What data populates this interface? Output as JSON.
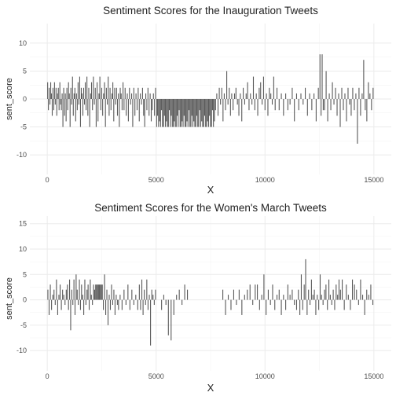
{
  "chart_data": [
    {
      "type": "bar",
      "title": "Sentiment Scores for the Inauguration Tweets",
      "xlabel": "X",
      "ylabel": "sent_score",
      "xlim": [
        -800,
        15800
      ],
      "ylim": [
        -13.5,
        13.5
      ],
      "x_ticks": [
        0,
        5000,
        10000,
        15000
      ],
      "y_ticks": [
        -10,
        -5,
        0,
        5,
        10
      ],
      "grid": true,
      "bar_color": "#595959",
      "segments": [
        {
          "x0": 0,
          "x1": 700,
          "values": [
            3,
            -2,
            2,
            -1,
            3,
            1,
            -3,
            2,
            -2,
            3,
            -1,
            2,
            -3,
            1,
            2,
            -2,
            3,
            -1,
            -2,
            1
          ]
        },
        {
          "x0": 700,
          "x1": 1800,
          "values": [
            -5,
            2,
            -3,
            1,
            -4,
            2,
            -2,
            3,
            1,
            -5,
            2,
            -1,
            4,
            -3,
            1,
            2,
            -4,
            1,
            -2,
            3,
            -1,
            4,
            -5,
            2,
            1,
            -3,
            2,
            -1,
            3,
            -2
          ]
        },
        {
          "x0": 1800,
          "x1": 3500,
          "values": [
            4,
            -3,
            2,
            -5,
            1,
            3,
            -2,
            4,
            -1,
            2,
            -5,
            3,
            -4,
            1,
            4,
            -2,
            2,
            -3,
            1,
            3,
            -5,
            2,
            -1,
            4,
            -3,
            2,
            -2,
            1,
            3,
            -4,
            2,
            -1,
            2,
            -3,
            1,
            -5,
            2,
            1,
            -2,
            3
          ]
        },
        {
          "x0": 3500,
          "x1": 5000,
          "values": [
            -2,
            2,
            -3,
            1,
            -4,
            2,
            -1,
            1,
            -5,
            2,
            -3,
            1,
            -2,
            2,
            -4,
            1,
            -1,
            2,
            -3,
            -5,
            1,
            -2,
            2,
            -3,
            1,
            -4,
            -2,
            1,
            -3,
            2
          ]
        },
        {
          "x0": 5000,
          "x1": 7700,
          "values": [
            -5,
            -3,
            -5,
            -4,
            -5,
            -2,
            -5,
            -5,
            -3,
            -5,
            -4,
            -5,
            -5,
            -2,
            -5,
            -3,
            -5,
            -5,
            -4,
            -5,
            -5,
            -3,
            -5,
            -2,
            -5,
            -5,
            -4,
            -5,
            -3,
            -5,
            -5,
            -4,
            -5,
            -2,
            -5,
            -5,
            -3,
            -5,
            -4,
            -5,
            -5,
            -3,
            -5,
            -5,
            -2,
            -5,
            -4,
            -5,
            -5,
            -3,
            -5,
            -5,
            -4,
            -5,
            -3,
            -5,
            -5,
            -2,
            -5,
            -4
          ]
        },
        {
          "x0": 7700,
          "x1": 8500,
          "values": [
            -2,
            1,
            -3,
            2,
            -1,
            2,
            -4,
            1,
            -2,
            5,
            -1,
            2,
            -3,
            1
          ]
        },
        {
          "x0": 8500,
          "x1": 10500,
          "values": [
            -2,
            1,
            2,
            -1,
            -3,
            1,
            -4,
            2,
            -1,
            1,
            3,
            -2,
            1,
            -1,
            4,
            -2,
            1,
            -3,
            2,
            3,
            -1,
            4,
            -2,
            1,
            -3,
            2,
            1,
            -1,
            4,
            -2
          ]
        },
        {
          "x0": 10500,
          "x1": 12500,
          "values": [
            2,
            -2,
            1,
            -3,
            1,
            -2,
            -1,
            2,
            -4,
            1,
            -2,
            1,
            -1,
            2,
            -3,
            1,
            -2,
            1,
            -4,
            2
          ]
        },
        {
          "x0": 12500,
          "x1": 12700,
          "values": [
            8,
            -3,
            8,
            -2
          ]
        },
        {
          "x0": 12700,
          "x1": 15000,
          "values": [
            -2,
            5,
            -4,
            1,
            -2,
            3,
            -1,
            2,
            -3,
            1,
            -5,
            2,
            -2,
            1,
            -4,
            2,
            -1,
            -3,
            2,
            -2,
            1,
            -8,
            2,
            -3,
            1,
            7,
            -2,
            -4,
            3,
            1,
            -2,
            2
          ]
        }
      ]
    },
    {
      "type": "bar",
      "title": "Sentiment Scores for the Women's March Tweets",
      "xlabel": "X",
      "ylabel": "sent_score",
      "xlim": [
        -800,
        15800
      ],
      "ylim": [
        -14,
        16.5
      ],
      "x_ticks": [
        0,
        5000,
        10000,
        15000
      ],
      "y_ticks": [
        -10,
        -5,
        0,
        5,
        10,
        15
      ],
      "grid": true,
      "bar_color": "#595959",
      "segments": [
        {
          "x0": 0,
          "x1": 900,
          "values": [
            2,
            -3,
            3,
            -2,
            1,
            2,
            -1,
            4,
            -3,
            1,
            3,
            -2,
            2,
            1,
            -1,
            2
          ]
        },
        {
          "x0": 900,
          "x1": 2200,
          "values": [
            3,
            -2,
            4,
            -6,
            2,
            -1,
            4,
            -3,
            5,
            2,
            -1,
            4,
            -2,
            3,
            1,
            -3,
            4,
            -1,
            2,
            3,
            -2,
            4,
            1,
            -1,
            3,
            2
          ]
        },
        {
          "x0": 2200,
          "x1": 2550,
          "values": [
            3,
            3,
            3,
            3,
            3,
            3,
            3,
            3
          ]
        },
        {
          "x0": 2550,
          "x1": 3300,
          "values": [
            -2,
            5,
            -3,
            2,
            -5,
            1,
            -2,
            3,
            -1,
            2,
            -3,
            1,
            -1,
            -2
          ]
        },
        {
          "x0": 3300,
          "x1": 4200,
          "values": [
            1,
            -2,
            2,
            -1,
            3,
            -2,
            2,
            -1,
            1,
            -2
          ]
        },
        {
          "x0": 4200,
          "x1": 5000,
          "values": [
            3,
            -2,
            4,
            -3,
            2,
            -1,
            4,
            -2,
            1,
            -9,
            2,
            1,
            -1,
            2
          ]
        },
        {
          "x0": 5200,
          "x1": 5500,
          "values": [
            -2,
            1,
            -1
          ]
        },
        {
          "x0": 5500,
          "x1": 6500,
          "values": [
            -7,
            -8,
            -3,
            1,
            2,
            -1,
            3,
            2
          ]
        },
        {
          "x0": 8000,
          "x1": 9500,
          "values": [
            2,
            -3,
            1,
            -2,
            2,
            -1,
            2,
            -3,
            1,
            2,
            3,
            -1
          ]
        },
        {
          "x0": 9500,
          "x1": 11500,
          "values": [
            3,
            3,
            -2,
            1,
            5,
            -3,
            2,
            -1,
            3,
            -2,
            1,
            2,
            -3,
            1,
            -2,
            3,
            1,
            2,
            -1,
            -2
          ]
        },
        {
          "x0": 11500,
          "x1": 13500,
          "values": [
            2,
            -3,
            5,
            -2,
            3,
            8,
            -3,
            2,
            -1,
            4,
            1,
            2,
            -3,
            1,
            -2,
            5,
            1,
            -1,
            2,
            3,
            -2,
            4,
            1,
            -1,
            2,
            -2,
            3,
            1,
            4,
            2
          ]
        },
        {
          "x0": 13500,
          "x1": 15000,
          "values": [
            4,
            -2,
            3,
            1,
            -2,
            4,
            3,
            2,
            -1,
            4,
            1,
            -3,
            2,
            1,
            3,
            -1
          ]
        }
      ]
    }
  ]
}
